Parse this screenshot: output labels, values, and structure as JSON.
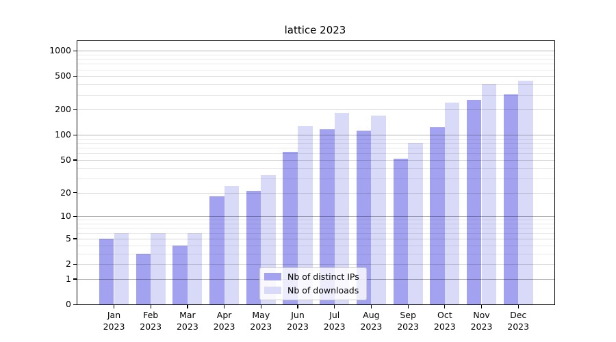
{
  "title": "lattice 2023",
  "chart_data": {
    "type": "bar",
    "title": "lattice 2023",
    "months": [
      "Jan",
      "Feb",
      "Mar",
      "Apr",
      "May",
      "Jun",
      "Jul",
      "Aug",
      "Sep",
      "Oct",
      "Nov",
      "Dec"
    ],
    "year": "2023",
    "series": [
      {
        "name": "Nb of distinct IPs",
        "color": "#a2a2f0",
        "values": [
          5,
          3,
          4,
          18,
          21,
          63,
          117,
          112,
          52,
          123,
          260,
          302
        ]
      },
      {
        "name": "Nb of downloads",
        "color": "#d9d9f8",
        "values": [
          6,
          6,
          6,
          24,
          33,
          128,
          184,
          170,
          80,
          241,
          400,
          444
        ]
      }
    ],
    "yscale": "log1p",
    "y_ticks": [
      0,
      1,
      2,
      5,
      10,
      20,
      50,
      100,
      200,
      500,
      1000
    ],
    "y_minor_ticks": [
      3,
      4,
      6,
      7,
      8,
      9,
      30,
      40,
      60,
      70,
      80,
      90,
      300,
      400,
      600,
      700,
      800,
      900
    ],
    "ylim": [
      0,
      1300
    ],
    "xlabel": "",
    "ylabel": "",
    "grid": true,
    "legend_position": "lower center"
  },
  "colors": {
    "spine": "#000000",
    "ips_bar": "#a2a2f0",
    "downloads_bar": "#d9d9f8",
    "legend_border": "#cccccc",
    "legend_background": "rgba(255,255,255,0.8)"
  }
}
